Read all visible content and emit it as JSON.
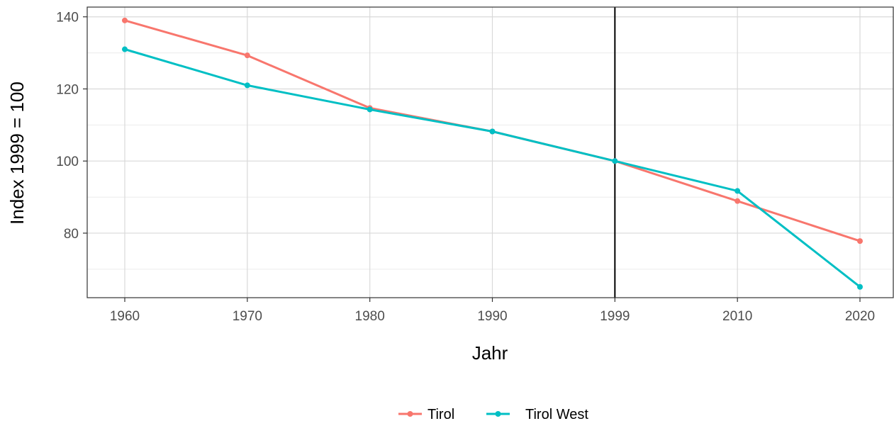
{
  "chart_data": {
    "type": "line",
    "xlabel": "Jahr",
    "ylabel": "Index 1999 = 100",
    "x": [
      1960,
      1970,
      1980,
      1990,
      1999,
      2010,
      2020
    ],
    "x_ticks": [
      "1960",
      "1970",
      "1980",
      "1990",
      "1999",
      "2010",
      "2020"
    ],
    "y_ticks": [
      80,
      100,
      120,
      140
    ],
    "ylim": [
      62.1,
      142.7
    ],
    "grid": true,
    "legend_position": "bottom",
    "reference_line_x": 1999,
    "series": [
      {
        "name": "Tirol",
        "color": "#F8766D",
        "values": [
          139.0,
          129.3,
          114.7,
          108.2,
          100.0,
          88.9,
          77.8
        ]
      },
      {
        "name": "Tirol West",
        "color": "#00BFC4",
        "values": [
          131.0,
          121.0,
          114.3,
          108.2,
          100.0,
          91.7,
          65.1
        ]
      }
    ]
  }
}
